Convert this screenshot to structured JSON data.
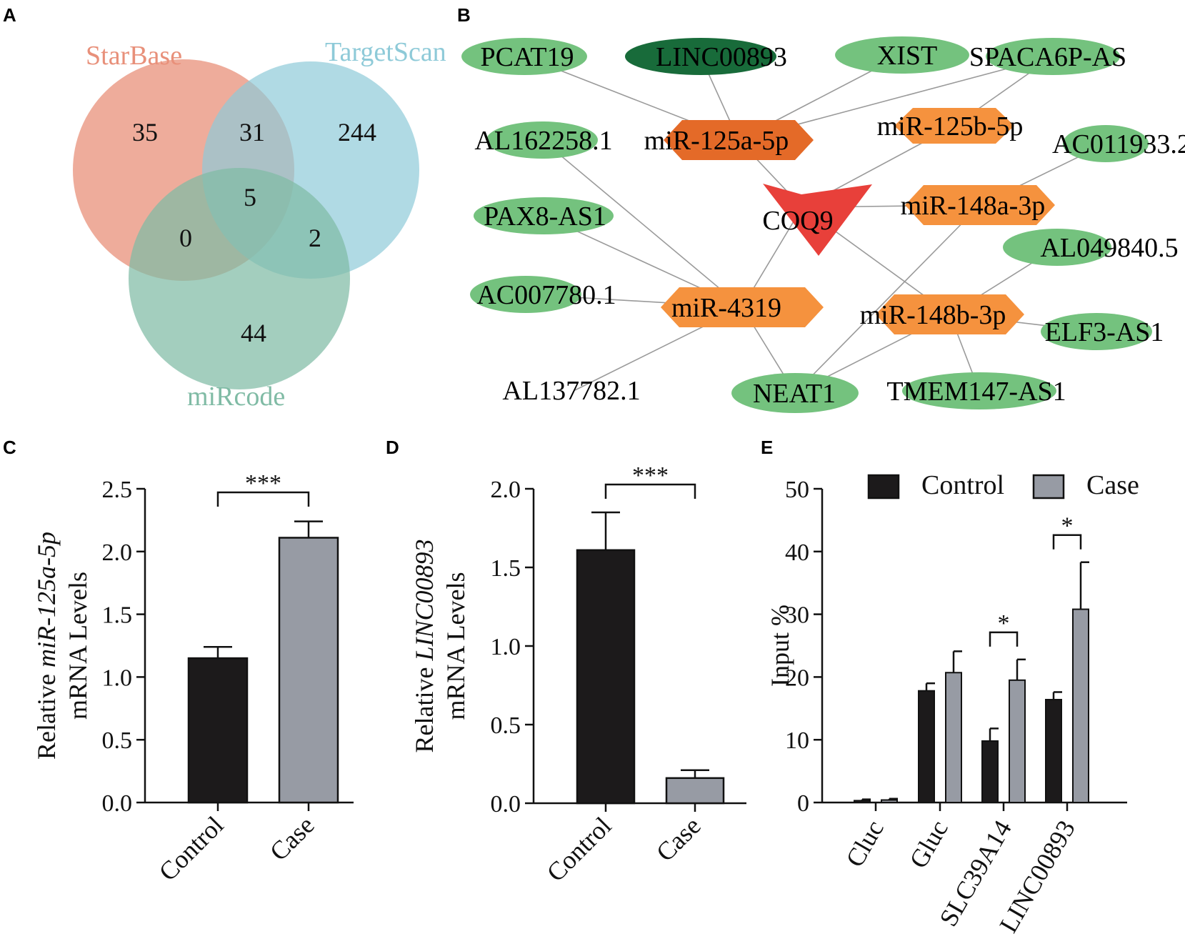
{
  "panels": {
    "A": "A",
    "B": "B",
    "C": "C",
    "D": "D",
    "E": "E"
  },
  "colors": {
    "starbase": "#e8907a",
    "targetscan": "#8ecad8",
    "mircode": "#80bba5",
    "node_lnc": "#74c27e",
    "node_lnc_dark": "#186b3a",
    "node_mir": "#f5923e",
    "node_mir_dark": "#e46a28",
    "node_gene": "#e8403a",
    "bar_control": "#1c1a1b",
    "bar_case": "#979ba4"
  },
  "venn": {
    "sets": [
      "StarBase",
      "TargetScan",
      "miRcode"
    ],
    "counts": {
      "starbase_only": "35",
      "starbase_targetscan": "31",
      "targetscan_only": "244",
      "all_three": "5",
      "starbase_mircode": "0",
      "targetscan_mircode": "2",
      "mircode_only": "44"
    }
  },
  "network": {
    "nodes": [
      {
        "id": "PCAT19",
        "label": "PCAT19",
        "type": "lncRNA"
      },
      {
        "id": "LINC00893",
        "label": "LINC00893",
        "type": "lncRNA-highlight"
      },
      {
        "id": "XIST",
        "label": "XIST",
        "type": "lncRNA"
      },
      {
        "id": "SPACA6P-AS",
        "label": "SPACA6P-AS",
        "type": "lncRNA"
      },
      {
        "id": "AL162258.1",
        "label": "AL162258.1",
        "type": "lncRNA"
      },
      {
        "id": "miR-125a-5p",
        "label": "miR-125a-5p",
        "type": "miRNA-highlight"
      },
      {
        "id": "miR-125b-5p",
        "label": "miR-125b-5p",
        "type": "miRNA"
      },
      {
        "id": "AC011933.2",
        "label": "AC011933.2",
        "type": "lncRNA"
      },
      {
        "id": "PAX8-AS1",
        "label": "PAX8-AS1",
        "type": "lncRNA"
      },
      {
        "id": "COQ9",
        "label": "COQ9",
        "type": "gene"
      },
      {
        "id": "miR-148a-3p",
        "label": "miR-148a-3p",
        "type": "miRNA"
      },
      {
        "id": "AL049840.5",
        "label": "AL049840.5",
        "type": "lncRNA"
      },
      {
        "id": "AC007780.1",
        "label": "AC007780.1",
        "type": "lncRNA"
      },
      {
        "id": "miR-4319",
        "label": "miR-4319",
        "type": "miRNA"
      },
      {
        "id": "miR-148b-3p",
        "label": "miR-148b-3p",
        "type": "miRNA"
      },
      {
        "id": "ELF3-AS1",
        "label": "ELF3-AS1",
        "type": "lncRNA"
      },
      {
        "id": "AL137782.1",
        "label": "AL137782.1",
        "type": "lncRNA"
      },
      {
        "id": "NEAT1",
        "label": "NEAT1",
        "type": "lncRNA"
      },
      {
        "id": "TMEM147-AS1",
        "label": "TMEM147-AS1",
        "type": "lncRNA"
      }
    ],
    "edges": [
      [
        "PCAT19",
        "miR-125a-5p"
      ],
      [
        "LINC00893",
        "miR-125a-5p"
      ],
      [
        "XIST",
        "miR-125a-5p"
      ],
      [
        "SPACA6P-AS",
        "miR-125a-5p"
      ],
      [
        "SPACA6P-AS",
        "miR-125b-5p"
      ],
      [
        "miR-125a-5p",
        "COQ9"
      ],
      [
        "miR-125b-5p",
        "COQ9"
      ],
      [
        "miR-148a-3p",
        "COQ9"
      ],
      [
        "miR-148a-3p",
        "AC011933.2"
      ],
      [
        "COQ9",
        "miR-4319"
      ],
      [
        "COQ9",
        "miR-148b-3p"
      ],
      [
        "AL162258.1",
        "miR-4319"
      ],
      [
        "PAX8-AS1",
        "miR-4319"
      ],
      [
        "AC007780.1",
        "miR-4319"
      ],
      [
        "AL137782.1",
        "miR-4319"
      ],
      [
        "NEAT1",
        "miR-4319"
      ],
      [
        "NEAT1",
        "miR-148a-3p"
      ],
      [
        "NEAT1",
        "miR-148b-3p"
      ],
      [
        "miR-148b-3p",
        "AL049840.5"
      ],
      [
        "miR-148b-3p",
        "ELF3-AS1"
      ],
      [
        "miR-148b-3p",
        "TMEM147-AS1"
      ]
    ]
  },
  "chart_data": [
    {
      "panel": "C",
      "type": "bar",
      "categories": [
        "Control",
        "Case"
      ],
      "values": [
        1.15,
        2.11
      ],
      "errors": [
        0.09,
        0.13
      ],
      "ylim": [
        0,
        2.5
      ],
      "yticks": [
        "0.0",
        "0.5",
        "1.0",
        "1.5",
        "2.0",
        "2.5"
      ],
      "ylabel_prefix": "Relative ",
      "ylabel_gene": "miR-125a-5p",
      "ylabel_line2": "mRNA Levels",
      "significance": "***"
    },
    {
      "panel": "D",
      "type": "bar",
      "categories": [
        "Control",
        "Case"
      ],
      "values": [
        1.61,
        0.16
      ],
      "errors": [
        0.24,
        0.05
      ],
      "ylim": [
        0,
        2.0
      ],
      "yticks": [
        "0.0",
        "0.5",
        "1.0",
        "1.5",
        "2.0"
      ],
      "ylabel_prefix": "Relative ",
      "ylabel_gene": "LINC00893",
      "ylabel_line2": "mRNA Levels",
      "significance": "***"
    },
    {
      "panel": "E",
      "type": "bar",
      "categories": [
        "Cluc",
        "Gluc",
        "SLC39A14",
        "LINC00893"
      ],
      "series": [
        {
          "name": "Control",
          "values": [
            0.3,
            17.8,
            9.8,
            16.4
          ],
          "errors": [
            0.2,
            1.2,
            2.0,
            1.2
          ]
        },
        {
          "name": "Case",
          "values": [
            0.4,
            20.7,
            19.5,
            30.8
          ],
          "errors": [
            0.2,
            3.4,
            3.3,
            7.5
          ]
        }
      ],
      "ylim": [
        0,
        50
      ],
      "yticks": [
        "0",
        "10",
        "20",
        "30",
        "40",
        "50"
      ],
      "ylabel": "Input %",
      "significance": [
        {
          "category": "SLC39A14",
          "label": "*"
        },
        {
          "category": "LINC00893",
          "label": "*"
        }
      ]
    }
  ]
}
